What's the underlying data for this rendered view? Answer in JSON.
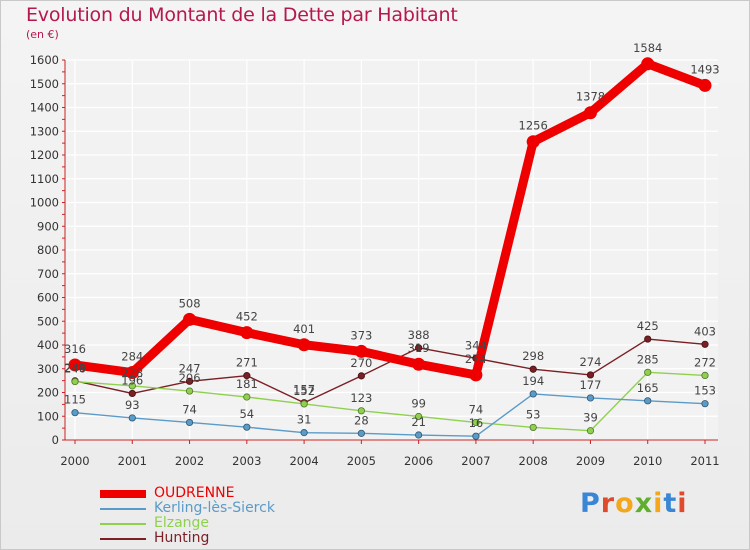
{
  "header": {
    "title": "Evolution du Montant de la Dette par Habitant",
    "subtitle": "(en €)"
  },
  "logo": {
    "text": "Proxiti",
    "letter_colors": [
      "#3a86d6",
      "#e0492a",
      "#f2a71c",
      "#5fae2f",
      "#f2a71c",
      "#3a86d6",
      "#e0492a"
    ]
  },
  "chart_data": {
    "type": "line",
    "title": "Evolution du Montant de la Dette par Habitant",
    "subtitle": "(en €)",
    "x": [
      "2000",
      "2001",
      "2002",
      "2003",
      "2004",
      "2005",
      "2006",
      "2007",
      "2008",
      "2009",
      "2010",
      "2011"
    ],
    "ylim": [
      0,
      1600
    ],
    "yticks": [
      0,
      100,
      200,
      300,
      400,
      500,
      600,
      700,
      800,
      900,
      1000,
      1100,
      1200,
      1300,
      1400,
      1500,
      1600
    ],
    "grid": true,
    "legend_position": "bottom-left",
    "series": [
      {
        "name": "Hunting",
        "color": "#7a1f24",
        "values": [
          249,
          196,
          247,
          271,
          157,
          270,
          388,
          344,
          298,
          274,
          425,
          403
        ]
      },
      {
        "name": "Elzange",
        "color": "#8fd14f",
        "values": [
          246,
          228,
          206,
          181,
          152,
          123,
          99,
          74,
          53,
          39,
          285,
          272
        ]
      },
      {
        "name": "Kerling-lès-Sierck",
        "color": "#5b9bc8",
        "values": [
          115,
          93,
          74,
          54,
          31,
          28,
          21,
          16,
          194,
          177,
          165,
          153
        ]
      },
      {
        "name": "OUDRENNE",
        "color": "#ee0000",
        "values": [
          316,
          284,
          508,
          452,
          401,
          373,
          319,
          274,
          1256,
          1378,
          1584,
          1493
        ]
      }
    ]
  }
}
